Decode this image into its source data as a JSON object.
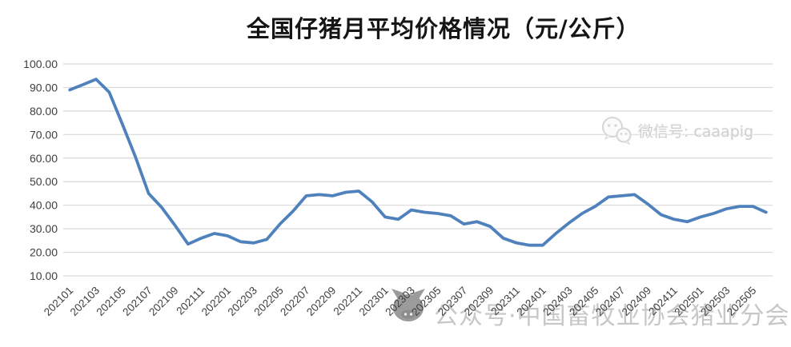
{
  "page": {
    "background": "#ffffff"
  },
  "chart_data": {
    "type": "line",
    "title": "全国仔猪月平均价格情况（元/公斤）",
    "series_name": "全国仔猪月平均价格",
    "unit": "元/公斤",
    "x": [
      "202101",
      "202102",
      "202103",
      "202104",
      "202105",
      "202106",
      "202107",
      "202108",
      "202109",
      "202110",
      "202111",
      "202112",
      "202201",
      "202202",
      "202203",
      "202204",
      "202205",
      "202206",
      "202207",
      "202208",
      "202209",
      "202210",
      "202211",
      "202212",
      "202301",
      "202302",
      "202303",
      "202304",
      "202305",
      "202306",
      "202307",
      "202308",
      "202309",
      "202310",
      "202311",
      "202312",
      "202401",
      "202402",
      "202403",
      "202404",
      "202405",
      "202406",
      "202407",
      "202408",
      "202409",
      "202410",
      "202411",
      "202412",
      "202501",
      "202502",
      "202503",
      "202504",
      "202505",
      "202506"
    ],
    "values": [
      89.0,
      91.2,
      93.5,
      88.0,
      74.5,
      60.5,
      45.0,
      39.0,
      31.5,
      23.5,
      26.0,
      28.0,
      27.0,
      24.5,
      24.0,
      25.5,
      32.0,
      37.5,
      44.0,
      44.5,
      44.0,
      45.5,
      46.0,
      41.5,
      35.0,
      34.0,
      38.0,
      37.0,
      36.5,
      35.5,
      32.0,
      33.0,
      31.0,
      26.0,
      24.0,
      23.0,
      23.0,
      28.0,
      32.5,
      36.5,
      39.5,
      43.5,
      44.0,
      44.5,
      40.5,
      36.0,
      34.0,
      33.0,
      35.0,
      36.5,
      38.5,
      39.5,
      39.5,
      37.0
    ],
    "x_tick_every": 2,
    "x_tick_labels": [
      "202101",
      "202103",
      "202105",
      "202107",
      "202109",
      "202111",
      "202201",
      "202203",
      "202205",
      "202207",
      "202209",
      "202211",
      "202301",
      "202303",
      "202305",
      "202307",
      "202309",
      "202311",
      "202401",
      "202403",
      "202405",
      "202407",
      "202409",
      "202411",
      "202501",
      "202503",
      "202505"
    ],
    "y_ticks": [
      "100.00",
      "90.00",
      "80.00",
      "70.00",
      "60.00",
      "50.00",
      "40.00",
      "30.00",
      "20.00",
      "10.00"
    ],
    "ylim": [
      10,
      100
    ],
    "grid": "horizontal-only",
    "legend": "none"
  },
  "watermarks": {
    "wechat_text": "微信号: caaapig",
    "bottom_text": "公众号·中国畜牧业协会猪业分会"
  },
  "colors": {
    "line": "#4f81bd",
    "grid": "#d9d9d9",
    "axis_text": "#404040",
    "title_text": "#151515",
    "watermark_text": "#c7c7c7",
    "watermark_logo": "#9b9b9b"
  }
}
